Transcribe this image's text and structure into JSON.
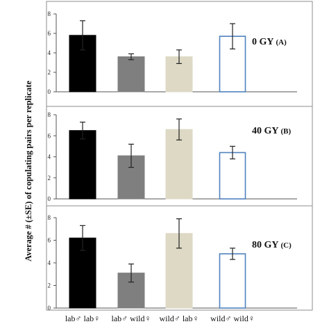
{
  "chart_data": {
    "type": "bar",
    "ylabel": "Average # (±SE) of copulating pairs per replicate",
    "categories": [
      "lab♂ lab♀",
      "lab♂ wild♀",
      "wild♂ lab♀",
      "wild♂ wild♀"
    ],
    "bar_styles": [
      {
        "fill": "#000000",
        "stroke": "#000000"
      },
      {
        "fill": "#7f7f7f",
        "stroke": "#7f7f7f"
      },
      {
        "fill": "#ddd9c4",
        "stroke": "#ddd9c4"
      },
      {
        "fill": "#ffffff",
        "stroke": "#4f81bd"
      }
    ],
    "panels": [
      {
        "label_main": "0 GY",
        "label_sub": "(A)",
        "yticks": [
          "0",
          "2",
          "4",
          "6",
          "8"
        ],
        "ylim": [
          0,
          8
        ],
        "values": [
          5.8,
          3.6,
          3.6,
          5.7
        ],
        "errors": [
          1.5,
          0.3,
          0.7,
          1.3
        ]
      },
      {
        "label_main": "40 GY",
        "label_sub": "(B)",
        "yticks": [
          "0",
          "2",
          "4",
          "6",
          "8"
        ],
        "ylim": [
          0,
          8
        ],
        "values": [
          6.5,
          4.1,
          6.6,
          4.4
        ],
        "errors": [
          0.8,
          1.1,
          1.0,
          0.6
        ]
      },
      {
        "label_main": "80 GY",
        "label_sub": "(C)",
        "yticks": [
          "0",
          "2",
          "4",
          "6",
          "8"
        ],
        "ylim": [
          0,
          8
        ],
        "values": [
          6.2,
          3.1,
          6.6,
          4.8
        ],
        "errors": [
          1.1,
          0.8,
          1.3,
          0.5
        ]
      }
    ]
  }
}
